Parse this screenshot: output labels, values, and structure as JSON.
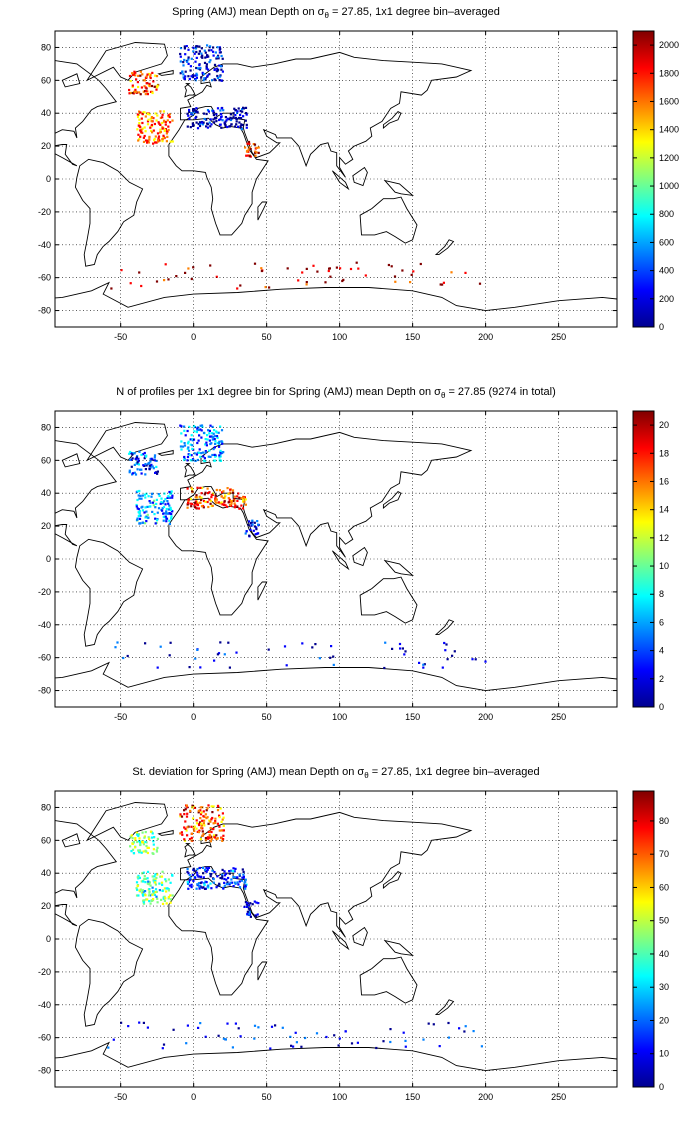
{
  "colormap": [
    "#00008f",
    "#0000ff",
    "#0080ff",
    "#00ffff",
    "#80ff80",
    "#ffff00",
    "#ff8000",
    "#ff0000",
    "#800000"
  ],
  "chart_data": [
    {
      "type": "heatmap",
      "title_pre": "Spring (AMJ) mean Depth on σ",
      "title_sub": "θ",
      "title_post": " = 27.85, 1x1 degree bin–averaged",
      "xlim": [
        -95,
        290
      ],
      "ylim": [
        -90,
        90
      ],
      "xticks": [
        -50,
        0,
        50,
        100,
        150,
        200,
        250
      ],
      "yticks": [
        -80,
        -60,
        -40,
        -20,
        0,
        20,
        40,
        60,
        80
      ],
      "grid": true,
      "colorbar": {
        "min": 0,
        "max": 2100,
        "ticks": [
          0,
          200,
          400,
          600,
          800,
          1000,
          1200,
          1400,
          1600,
          1800,
          2000
        ]
      },
      "clusters": [
        {
          "region": "Nordic Seas",
          "lon": [
            -10,
            20
          ],
          "lat": [
            60,
            82
          ],
          "value": 200
        },
        {
          "region": "Subpolar North Atlantic",
          "lon": [
            -45,
            -25
          ],
          "lat": [
            52,
            66
          ],
          "value": 1700
        },
        {
          "region": "Subtropical North Atlantic",
          "lon": [
            -40,
            -15
          ],
          "lat": [
            22,
            42
          ],
          "value": 1600
        },
        {
          "region": "Mediterranean Sea",
          "lon": [
            -5,
            36
          ],
          "lat": [
            31,
            44
          ],
          "value": 150
        },
        {
          "region": "Red Sea",
          "lon": [
            34,
            44
          ],
          "lat": [
            14,
            24
          ],
          "value": 1800
        },
        {
          "region": "Southern Ocean",
          "lon": [
            -60,
            200
          ],
          "lat": [
            -66,
            -50
          ],
          "value": 1900
        }
      ]
    },
    {
      "type": "heatmap",
      "title_pre": "N of profiles per 1x1 degree bin for Spring (AMJ) mean Depth on σ",
      "title_sub": "θ",
      "title_post": " = 27.85 (9274 in total)",
      "xlim": [
        -95,
        290
      ],
      "ylim": [
        -90,
        90
      ],
      "xticks": [
        -50,
        0,
        50,
        100,
        150,
        200,
        250
      ],
      "yticks": [
        -80,
        -60,
        -40,
        -20,
        0,
        20,
        40,
        60,
        80
      ],
      "grid": true,
      "colorbar": {
        "min": 0,
        "max": 21,
        "ticks": [
          0,
          2,
          4,
          6,
          8,
          10,
          12,
          14,
          16,
          18,
          20
        ]
      },
      "total_profiles": 9274,
      "clusters": [
        {
          "region": "Nordic Seas",
          "lon": [
            -10,
            20
          ],
          "lat": [
            60,
            82
          ],
          "value": 5
        },
        {
          "region": "Subpolar North Atlantic",
          "lon": [
            -45,
            -25
          ],
          "lat": [
            52,
            66
          ],
          "value": 4
        },
        {
          "region": "Subtropical North Atlantic",
          "lon": [
            -40,
            -15
          ],
          "lat": [
            22,
            42
          ],
          "value": 6
        },
        {
          "region": "Mediterranean Sea",
          "lon": [
            -5,
            36
          ],
          "lat": [
            31,
            44
          ],
          "value": 17
        },
        {
          "region": "Red Sea",
          "lon": [
            34,
            44
          ],
          "lat": [
            14,
            24
          ],
          "value": 2
        },
        {
          "region": "Southern Ocean",
          "lon": [
            -60,
            200
          ],
          "lat": [
            -66,
            -50
          ],
          "value": 2
        }
      ]
    },
    {
      "type": "heatmap",
      "title_pre": "St. deviation for Spring (AMJ) mean Depth on σ",
      "title_sub": "θ",
      "title_post": " = 27.85, 1x1 degree bin–averaged",
      "xlim": [
        -95,
        290
      ],
      "ylim": [
        -90,
        90
      ],
      "xticks": [
        -50,
        0,
        50,
        100,
        150,
        200,
        250
      ],
      "yticks": [
        -80,
        -60,
        -40,
        -20,
        0,
        20,
        40,
        60,
        80
      ],
      "grid": true,
      "colorbar": {
        "min": 0,
        "max": 89,
        "ticks": [
          0,
          10,
          20,
          30,
          40,
          50,
          60,
          70,
          80
        ]
      },
      "clusters": [
        {
          "region": "Nordic Seas",
          "lon": [
            -10,
            20
          ],
          "lat": [
            60,
            82
          ],
          "value": 70
        },
        {
          "region": "Subpolar North Atlantic",
          "lon": [
            -45,
            -25
          ],
          "lat": [
            52,
            66
          ],
          "value": 45
        },
        {
          "region": "Subtropical North Atlantic",
          "lon": [
            -40,
            -15
          ],
          "lat": [
            22,
            42
          ],
          "value": 40
        },
        {
          "region": "Mediterranean Sea",
          "lon": [
            -5,
            36
          ],
          "lat": [
            31,
            44
          ],
          "value": 15
        },
        {
          "region": "Red Sea",
          "lon": [
            34,
            44
          ],
          "lat": [
            14,
            24
          ],
          "value": 10
        },
        {
          "region": "Southern Ocean",
          "lon": [
            -60,
            200
          ],
          "lat": [
            -66,
            -50
          ],
          "value": 12
        }
      ]
    }
  ]
}
